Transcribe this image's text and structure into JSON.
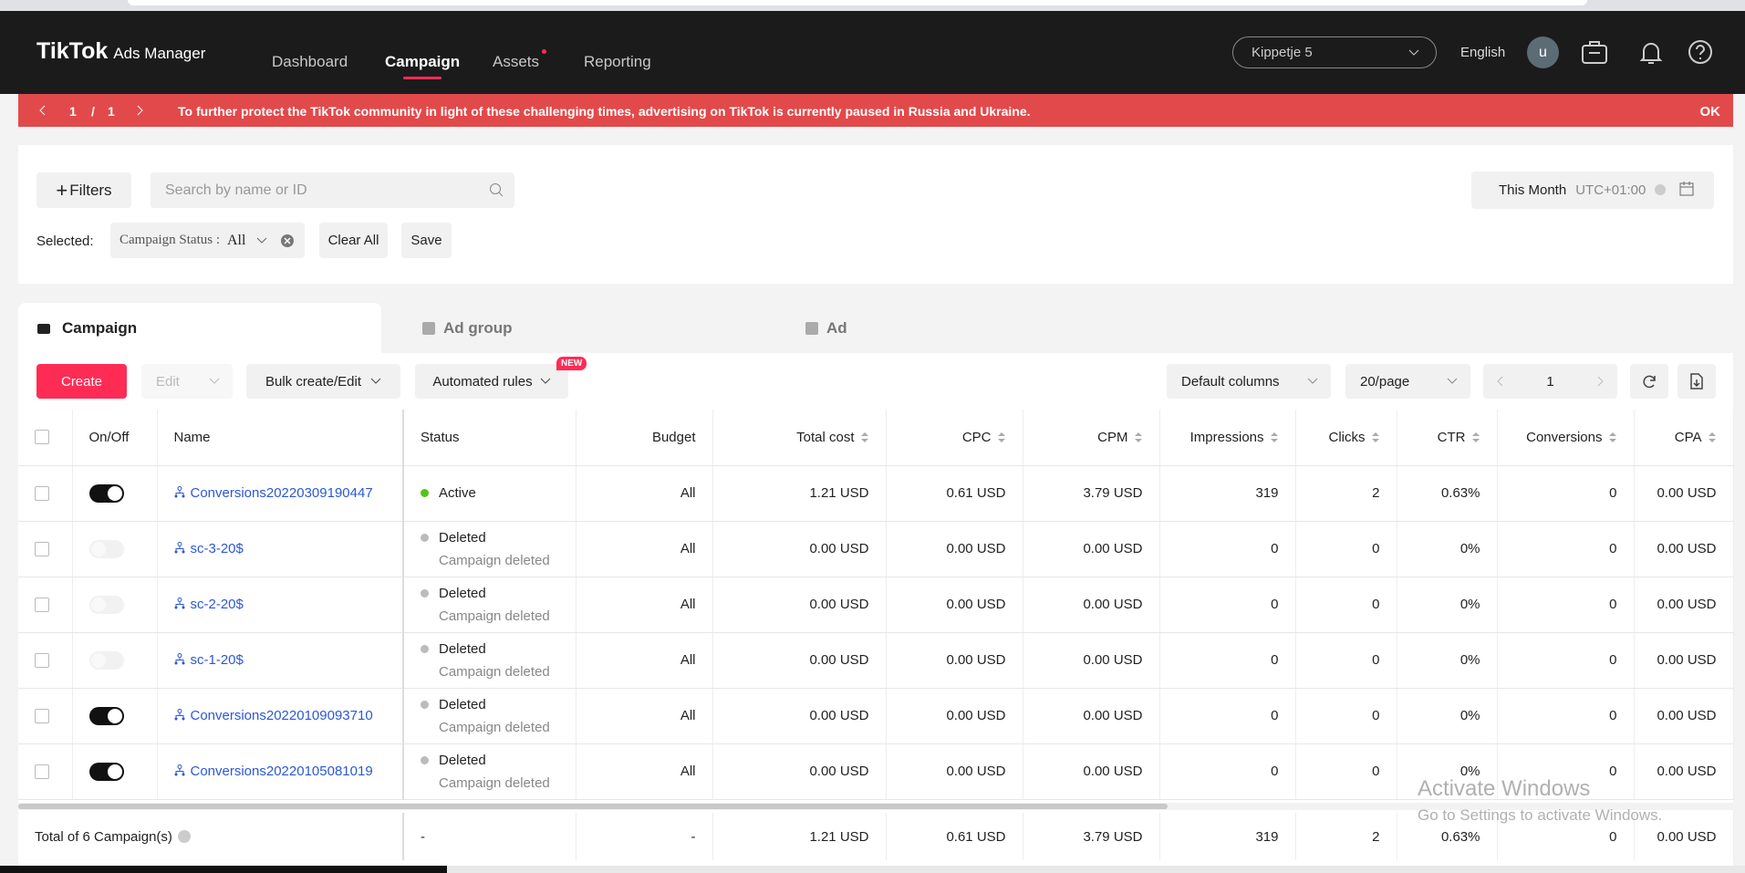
{
  "header": {
    "logo": "TikTok",
    "logo_sub": "Ads Manager",
    "nav": [
      "Dashboard",
      "Campaign",
      "Assets",
      "Reporting"
    ],
    "active_nav": 1,
    "account": "Kippetje 5",
    "language": "English",
    "avatar": "u"
  },
  "banner": {
    "page": "1",
    "separator": "/",
    "total": "1",
    "message": "To further protect the TikTok community in light of these challenging times, advertising on TikTok is currently paused in Russia and Ukraine.",
    "action": "OK"
  },
  "filters": {
    "add": "Filters",
    "search_placeholder": "Search by name or ID",
    "date_range": "This Month",
    "timezone": "UTC+01:00",
    "selected_label": "Selected:",
    "chip_label": "Campaign Status :",
    "chip_value": "All",
    "clear": "Clear All",
    "save": "Save"
  },
  "tabs": [
    "Campaign",
    "Ad group",
    "Ad"
  ],
  "toolbar": {
    "create": "Create",
    "edit": "Edit",
    "bulk": "Bulk create/Edit",
    "rules": "Automated rules",
    "new_badge": "NEW",
    "columns": "Default columns",
    "page_size": "20/page",
    "page": "1"
  },
  "table": {
    "columns": [
      "On/Off",
      "Name",
      "Status",
      "Budget",
      "Total cost",
      "CPC",
      "CPM",
      "Impressions",
      "Clicks",
      "CTR",
      "Conversions",
      "CPA"
    ],
    "rows": [
      {
        "on": true,
        "name": "Conversions20220309190447",
        "status": "Active",
        "status_color": "#52c41a",
        "budget": "All",
        "cells": [
          "1.21 USD",
          "0.61 USD",
          "3.79 USD",
          "319",
          "2",
          "0.63%",
          "0",
          "0.00 USD"
        ]
      },
      {
        "on": false,
        "name": "sc-3-20$",
        "status": "Deleted",
        "status_color": "#bbbbbb",
        "note": "Campaign deleted",
        "budget": "All",
        "cells": [
          "0.00 USD",
          "0.00 USD",
          "0.00 USD",
          "0",
          "0",
          "0%",
          "0",
          "0.00 USD"
        ]
      },
      {
        "on": false,
        "name": "sc-2-20$",
        "status": "Deleted",
        "status_color": "#bbbbbb",
        "note": "Campaign deleted",
        "budget": "All",
        "cells": [
          "0.00 USD",
          "0.00 USD",
          "0.00 USD",
          "0",
          "0",
          "0%",
          "0",
          "0.00 USD"
        ]
      },
      {
        "on": false,
        "name": "sc-1-20$",
        "status": "Deleted",
        "status_color": "#bbbbbb",
        "note": "Campaign deleted",
        "budget": "All",
        "cells": [
          "0.00 USD",
          "0.00 USD",
          "0.00 USD",
          "0",
          "0",
          "0%",
          "0",
          "0.00 USD"
        ]
      },
      {
        "on": true,
        "name": "Conversions20220109093710",
        "status": "Deleted",
        "status_color": "#bbbbbb",
        "note": "Campaign deleted",
        "budget": "All",
        "cells": [
          "0.00 USD",
          "0.00 USD",
          "0.00 USD",
          "0",
          "0",
          "0%",
          "0",
          "0.00 USD"
        ]
      },
      {
        "on": true,
        "name": "Conversions20220105081019",
        "status": "Deleted",
        "status_color": "#bbbbbb",
        "note": "Campaign deleted",
        "budget": "All",
        "cells": [
          "0.00 USD",
          "0.00 USD",
          "0.00 USD",
          "0",
          "0",
          "0%",
          "0",
          "0.00 USD"
        ]
      }
    ],
    "total": {
      "label": "Total of 6 Campaign(s)",
      "cells": [
        "-",
        "-",
        "1.21 USD",
        "0.61 USD",
        "3.79 USD",
        "319",
        "2",
        "0.63%",
        "0",
        "0.00 USD"
      ]
    }
  },
  "watermark": {
    "title": "Activate Windows",
    "text": "Go to Settings to activate Windows."
  }
}
